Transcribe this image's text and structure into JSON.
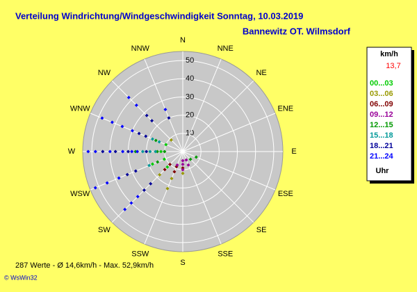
{
  "chart_data": {
    "type": "polar-scatter",
    "title": "Verteilung Windrichtung/Windgeschwindigkeit  Sonntag, 10.03.2019",
    "subtitle": "Bannewitz OT. Wilmsdorf",
    "directions": [
      "N",
      "NNE",
      "NE",
      "ENE",
      "E",
      "ESE",
      "SE",
      "SSE",
      "S",
      "SSW",
      "SW",
      "WSW",
      "W",
      "WNW",
      "NW",
      "NNW"
    ],
    "xlim": [
      0,
      360
    ],
    "ylim": [
      0,
      55
    ],
    "yticks": [
      10,
      20,
      30,
      40,
      50
    ],
    "legend_title": "km/h",
    "current_value": "13,7",
    "legend_footer": "Uhr",
    "footer": "287 Werte   -   Ø 14,6km/h   -   Max. 52,9km/h",
    "credit": "© WsWin32",
    "series": [
      {
        "name": "00...03",
        "color": "#00cc00",
        "x": [
          247.5,
          270,
          292.5,
          225,
          247.5
        ],
        "values": [
          18,
          12,
          10,
          12,
          11
        ]
      },
      {
        "name": "03...06",
        "color": "#999900",
        "x": [
          202.5,
          202.5,
          225,
          315,
          180
        ],
        "values": [
          22,
          16,
          18,
          9,
          12
        ]
      },
      {
        "name": "06...09",
        "color": "#800000",
        "x": [
          202.5,
          202.5,
          180,
          225,
          225
        ],
        "values": [
          12,
          9,
          9,
          10,
          14
        ]
      },
      {
        "name": "09...12",
        "color": "#990099",
        "x": [
          180,
          180,
          157.5,
          202.5,
          180,
          157.5
        ],
        "values": [
          10,
          7,
          8,
          8,
          5,
          5
        ]
      },
      {
        "name": "12...15",
        "color": "#009900",
        "x": [
          270,
          270,
          247.5,
          292.5,
          112.5,
          135,
          270
        ],
        "values": [
          26,
          14,
          15,
          16,
          8,
          6,
          10
        ]
      },
      {
        "name": "15...18",
        "color": "#009999",
        "x": [
          270,
          270,
          292.5,
          247.5,
          270,
          292.5
        ],
        "values": [
          22,
          18,
          18,
          20,
          15,
          14
        ]
      },
      {
        "name": "18...21",
        "color": "#000099",
        "x": [
          270,
          270,
          270,
          247.5,
          247.5,
          292.5,
          292.5,
          315,
          315,
          337.5,
          225,
          225,
          270
        ],
        "values": [
          44,
          37,
          30,
          33,
          28,
          26,
          22,
          28,
          24,
          20,
          30,
          25,
          20
        ]
      },
      {
        "name": "21...24",
        "color": "#0000ff",
        "x": [
          292.5,
          292.5,
          292.5,
          270,
          270,
          270,
          270,
          247.5,
          247.5,
          247.5,
          225,
          225,
          225,
          315,
          315,
          337.5,
          270,
          270,
          292.5
        ],
        "values": [
          48,
          42,
          36,
          52,
          48,
          40,
          33,
          52,
          45,
          38,
          45,
          40,
          35,
          42,
          36,
          25,
          28,
          25,
          30
        ]
      }
    ]
  }
}
